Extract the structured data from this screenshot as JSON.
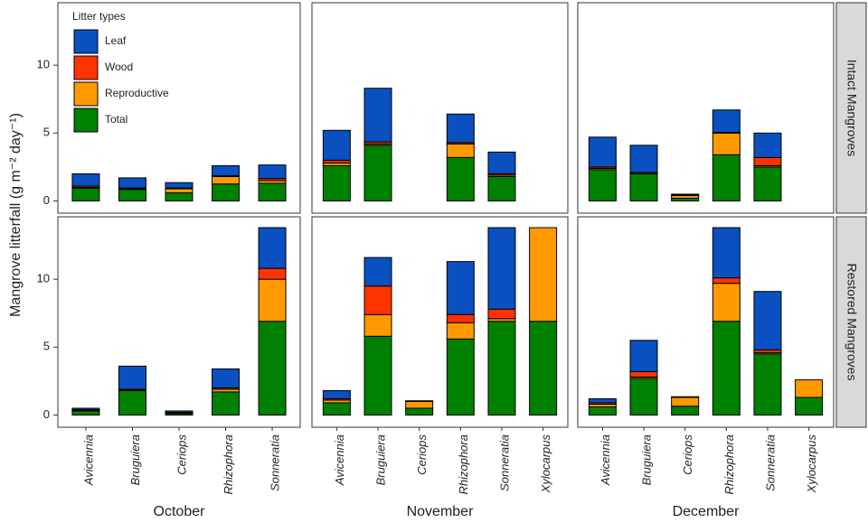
{
  "chart_data": {
    "type": "bar",
    "stacked": true,
    "y_label": "Mangrove litterfall (g m⁻² day⁻¹)",
    "legend_title": "Litter types",
    "series": [
      {
        "name": "Leaf",
        "color": "#0a50c0"
      },
      {
        "name": "Wood",
        "color": "#ff3300"
      },
      {
        "name": "Reproductive",
        "color": "#ff9900"
      },
      {
        "name": "Total",
        "color": "#008000"
      }
    ],
    "rows": [
      "Intact Mangroves",
      "Restored Mangroves"
    ],
    "columns": [
      {
        "label": "October",
        "categories": [
          "Avicennia",
          "Bruguiera",
          "Ceriops",
          "Rhizophora",
          "Sonneratia"
        ]
      },
      {
        "label": "November",
        "categories": [
          "Avicennia",
          "Bruguiera",
          "Ceriops",
          "Rhizophora",
          "Sonneratia",
          "Xylocarpus"
        ]
      },
      {
        "label": "December",
        "categories": [
          "Avicennia",
          "Bruguiera",
          "Ceriops",
          "Rhizophora",
          "Sonneratia",
          "Xylocarpus"
        ]
      }
    ],
    "ylim": [
      -0.9,
      14.6
    ],
    "yticks": [
      0,
      5,
      10
    ],
    "grid": false,
    "panels": [
      [
        [
          [
            0.9,
            0.75,
            0.4,
            0.75,
            1.0
          ],
          [
            0.1,
            0.05,
            0.05,
            0.05,
            0.15
          ],
          [
            0.05,
            0.05,
            0.3,
            0.55,
            0.2
          ],
          [
            0.95,
            0.85,
            0.6,
            1.25,
            1.3
          ]
        ],
        [
          [
            2.2,
            3.95,
            null,
            2.1,
            1.6,
            null
          ],
          [
            0.2,
            0.15,
            null,
            0.1,
            0.1,
            null
          ],
          [
            0.2,
            0.1,
            null,
            1.0,
            0.1,
            null
          ],
          [
            2.6,
            4.1,
            null,
            3.2,
            1.8,
            null
          ]
        ],
        [
          [
            2.2,
            2.0,
            0.05,
            1.65,
            1.8,
            null
          ],
          [
            0.1,
            0.05,
            0.05,
            0.05,
            0.6,
            null
          ],
          [
            0.1,
            0.05,
            0.2,
            1.6,
            0.1,
            null
          ],
          [
            2.3,
            2.0,
            0.2,
            3.4,
            2.5,
            null
          ]
        ]
      ],
      [
        [
          [
            0.1,
            1.7,
            0.1,
            1.4,
            3.0
          ],
          [
            0.05,
            0.05,
            0.05,
            0.1,
            0.8
          ],
          [
            0.05,
            0.05,
            0.05,
            0.2,
            3.1
          ],
          [
            0.3,
            1.8,
            0.1,
            1.7,
            6.9
          ]
        ],
        [
          [
            0.6,
            2.1,
            0.05,
            3.9,
            6.0,
            0
          ],
          [
            0.1,
            2.1,
            0,
            0.6,
            0.7,
            0
          ],
          [
            0.2,
            1.6,
            0.5,
            1.2,
            0.2,
            6.9
          ],
          [
            0.9,
            5.8,
            0.5,
            5.6,
            6.9,
            6.9
          ]
        ],
        [
          [
            0.3,
            2.3,
            0.05,
            3.7,
            4.3,
            0
          ],
          [
            0.1,
            0.4,
            0,
            0.4,
            0.2,
            0
          ],
          [
            0.2,
            0.1,
            0.65,
            2.8,
            0.1,
            1.3
          ],
          [
            0.6,
            2.7,
            0.65,
            6.9,
            4.5,
            1.3
          ]
        ]
      ]
    ]
  }
}
